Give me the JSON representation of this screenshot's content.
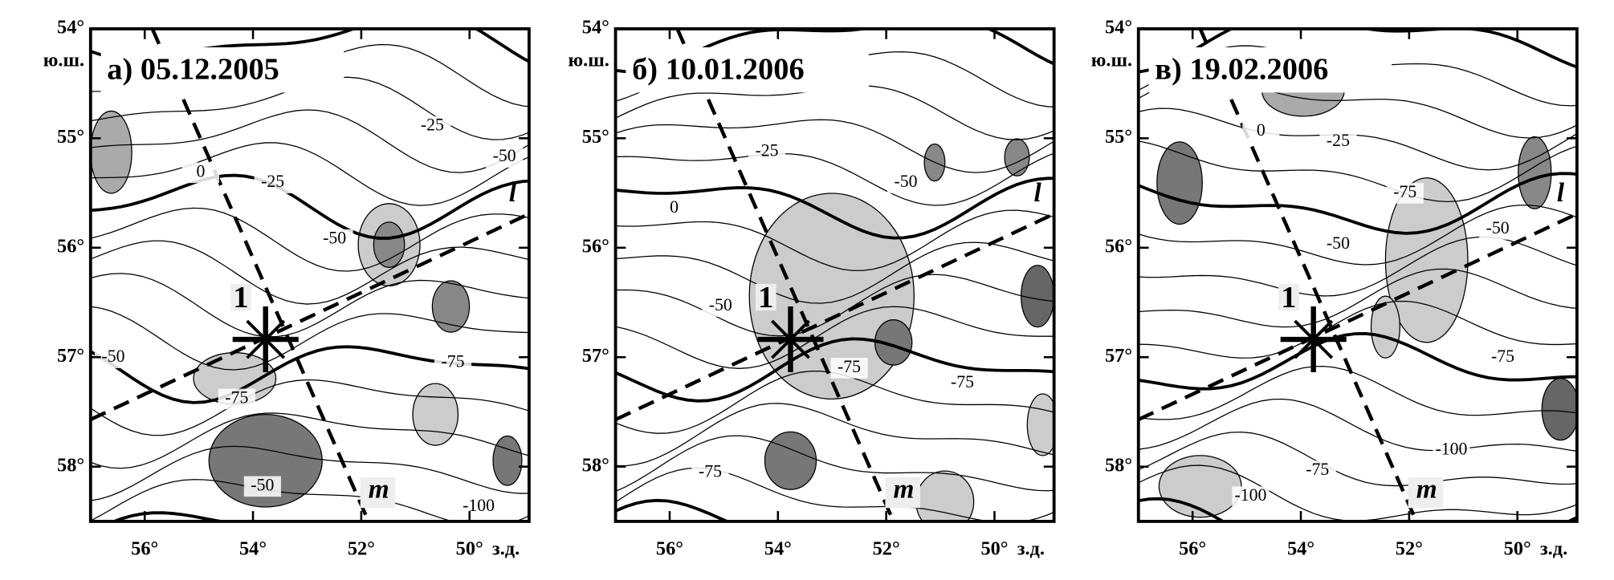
{
  "panels": [
    {
      "title": "а) 05.12.2005",
      "contour_labels": [
        "0",
        "-25",
        "-25",
        "-50",
        "-50",
        "-50",
        "-75",
        "-75",
        "-50",
        "-100"
      ],
      "line_labels": [
        "l",
        "m"
      ],
      "point_label": "1"
    },
    {
      "title": "б) 10.01.2006",
      "contour_labels": [
        "-25",
        "0",
        "-50",
        "-50",
        "-75",
        "-75",
        "-75"
      ],
      "line_labels": [
        "l",
        "m"
      ],
      "point_label": "1"
    },
    {
      "title": "в) 19.02.2006",
      "contour_labels": [
        "0",
        "-25",
        "-50",
        "-75",
        "-50",
        "-75",
        "-100",
        "-75",
        "-100"
      ],
      "line_labels": [
        "l",
        "m"
      ],
      "point_label": "1"
    }
  ],
  "lat_labels": [
    "54°",
    "55°",
    "56°",
    "57°",
    "58°"
  ],
  "lat_unit": "ю.ш.",
  "lon_labels": [
    "56°",
    "54°",
    "52°",
    "50°"
  ],
  "lon_unit": "з.д."
}
